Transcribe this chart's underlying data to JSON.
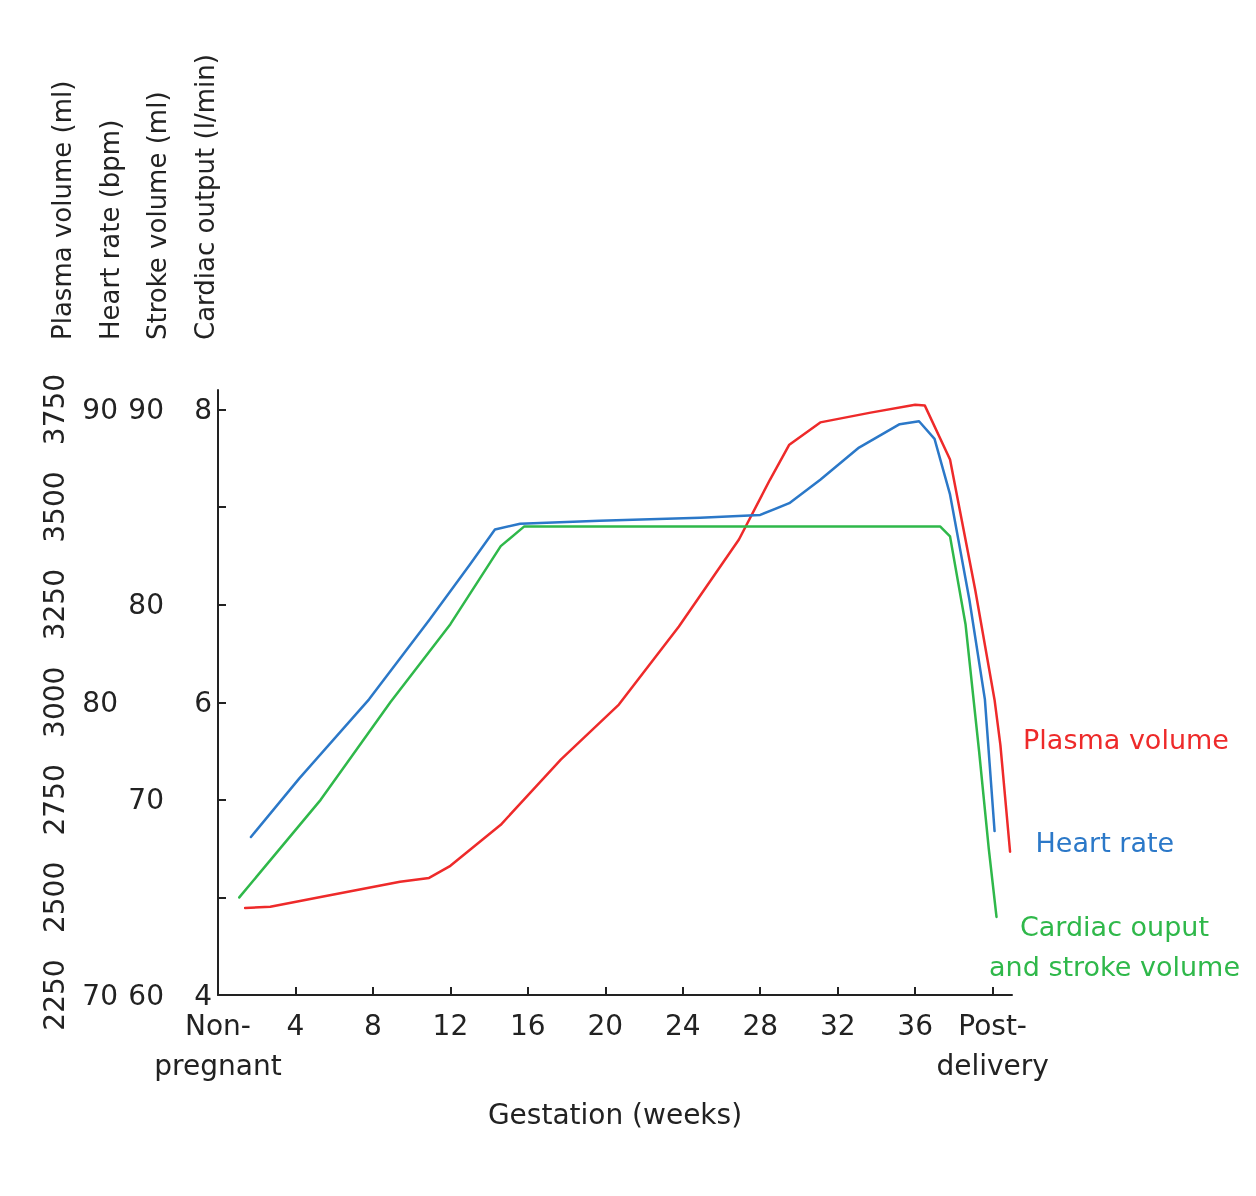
{
  "chart_data": {
    "type": "line",
    "xlabel": "Gestation (weeks)",
    "ylabel": "Plasma volume (ml)",
    "y2label": "Heart rate (bpm)",
    "y3label": "Stroke volume (ml)",
    "annotations": [
      "Cardiac output (l/min)",
      "4",
      "6",
      "8"
    ],
    "xlim": [
      0,
      41
    ],
    "xticks": [
      {
        "value": 0,
        "label": "Non-\npregnant"
      },
      4,
      8,
      12,
      16,
      20,
      24,
      28,
      32,
      36,
      {
        "value": 40,
        "label": "Post-\ndelivery"
      }
    ],
    "ylim": [
      2250,
      3800
    ],
    "yticks": [
      2250,
      2500,
      2750,
      3000,
      3250,
      3500,
      3750
    ],
    "y2lim": [
      70,
      90.667
    ],
    "y2ticks": [
      70,
      80,
      90
    ],
    "y3lim": [
      60,
      91
    ],
    "y3ticks": [
      60,
      70,
      80,
      90
    ],
    "grid": false,
    "legend": false,
    "marker": "none",
    "line_style": "solid",
    "series": [
      {
        "name": "Plasma volume",
        "color": "#ee2a2a",
        "axis": "y",
        "x": [
          1.4,
          2.7,
          5.3,
          9.4,
          10.9,
          12,
          14.6,
          17.7,
          20.7,
          23.8,
          26.9,
          28.5,
          29.5,
          31.1,
          33.7,
          36,
          36.5,
          37.8,
          39.1,
          40.1,
          40.4,
          40.9
        ],
        "values": [
          2473,
          2476,
          2501,
          2540,
          2550,
          2581,
          2686,
          2853,
          2994,
          3194,
          3417,
          3570,
          3660,
          3717,
          3742,
          3762,
          3760,
          3622,
          3288,
          3006,
          2891,
          2617
        ]
      },
      {
        "name": "Heart rate",
        "color": "#2b78c8",
        "axis": "y2",
        "x": [
          1.7,
          4.2,
          7.8,
          10.9,
          13,
          14.3,
          15.6,
          19.7,
          24.9,
          28,
          29.5,
          31.1,
          33.1,
          35.2,
          36.2,
          37,
          37.8,
          38.8,
          39.6,
          40.1
        ],
        "values": [
          75.4,
          77.4,
          80.1,
          82.8,
          84.7,
          85.9,
          86.1,
          86.2,
          86.3,
          86.4,
          86.8,
          87.6,
          88.7,
          89.5,
          89.6,
          89,
          87.1,
          83.5,
          80.1,
          75.6
        ]
      },
      {
        "name": "Cardiac ouput\nand stroke volume",
        "color": "#2fb84a",
        "axis": "y3",
        "x": [
          1.1,
          3.2,
          5.3,
          8.9,
          12,
          14.6,
          15.8,
          18.7,
          24.9,
          31.6,
          37.3,
          37.8,
          38.6,
          39.3,
          39.8,
          40.2
        ],
        "values": [
          65,
          67.5,
          70,
          75,
          79,
          83,
          84,
          84,
          84,
          84,
          84,
          83.5,
          79,
          72.5,
          67.5,
          64
        ]
      }
    ]
  }
}
